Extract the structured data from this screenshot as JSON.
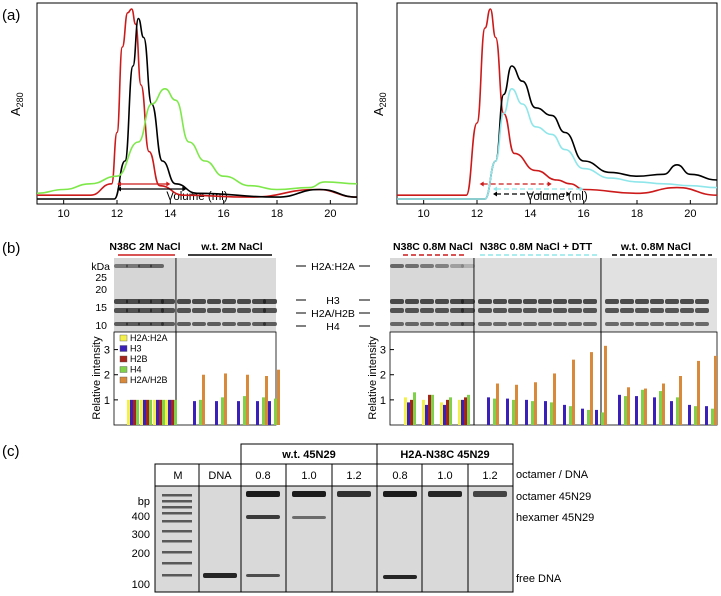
{
  "panel_labels": {
    "a": "(a)",
    "b": "(b)",
    "c": "(c)"
  },
  "colors": {
    "red": "#cc1a1a",
    "black": "#000000",
    "green": "#7ee84a",
    "cyan": "#8fe6ea",
    "bar_yellow": "#f3f04a",
    "bar_blue": "#3a1fb8",
    "bar_darkred": "#a5241c",
    "bar_green": "#7fd14a",
    "bar_orange": "#d8893a"
  },
  "chart_data": [
    {
      "type": "line",
      "panel": "(a) left",
      "ylabel": "A",
      "ylabel_sub": "280",
      "xlabel": "Volume (ml)",
      "xlim": [
        9,
        21
      ],
      "xticks": [
        10,
        12,
        14,
        16,
        18,
        20
      ],
      "series": [
        {
          "color": "red",
          "points": [
            [
              9,
              0.02
            ],
            [
              11,
              0.02
            ],
            [
              11.8,
              0.08
            ],
            [
              12.0,
              0.35
            ],
            [
              12.2,
              0.8
            ],
            [
              12.4,
              0.98
            ],
            [
              12.55,
              1.0
            ],
            [
              12.7,
              0.92
            ],
            [
              12.9,
              0.6
            ],
            [
              13.2,
              0.25
            ],
            [
              13.6,
              0.07
            ],
            [
              14.5,
              0.02
            ],
            [
              17,
              0.01
            ],
            [
              19.5,
              0.05
            ],
            [
              21,
              0.01
            ]
          ]
        },
        {
          "color": "black",
          "points": [
            [
              9,
              0.0
            ],
            [
              11.9,
              0.0
            ],
            [
              12.3,
              0.2
            ],
            [
              12.6,
              0.7
            ],
            [
              12.8,
              0.95
            ],
            [
              13.0,
              0.85
            ],
            [
              13.3,
              0.5
            ],
            [
              13.7,
              0.2
            ],
            [
              14.2,
              0.08
            ],
            [
              15,
              0.03
            ],
            [
              18,
              0.01
            ],
            [
              19.6,
              0.05
            ],
            [
              21,
              0.01
            ]
          ]
        },
        {
          "color": "green",
          "points": [
            [
              9,
              0.03
            ],
            [
              10,
              0.05
            ],
            [
              11,
              0.08
            ],
            [
              12,
              0.12
            ],
            [
              12.8,
              0.3
            ],
            [
              13.3,
              0.5
            ],
            [
              13.8,
              0.58
            ],
            [
              14.2,
              0.52
            ],
            [
              14.7,
              0.3
            ],
            [
              15.3,
              0.2
            ],
            [
              16,
              0.12
            ],
            [
              17,
              0.07
            ],
            [
              18,
              0.05
            ],
            [
              19.2,
              0.06
            ],
            [
              19.8,
              0.09
            ],
            [
              21,
              0.08
            ]
          ]
        }
      ],
      "ranges": [
        {
          "color": "red",
          "x": [
            12.0,
            14.0
          ]
        },
        {
          "color": "black",
          "x": [
            12.0,
            14.6
          ]
        }
      ]
    },
    {
      "type": "line",
      "panel": "(a) right",
      "ylabel": "A",
      "ylabel_sub": "280",
      "xlabel": "Volume (ml)",
      "xlim": [
        9,
        21
      ],
      "xticks": [
        10,
        12,
        14,
        16,
        18,
        20
      ],
      "series": [
        {
          "color": "red",
          "points": [
            [
              9,
              0.02
            ],
            [
              11.6,
              0.02
            ],
            [
              12.0,
              0.4
            ],
            [
              12.3,
              0.9
            ],
            [
              12.5,
              1.0
            ],
            [
              12.7,
              0.85
            ],
            [
              13.0,
              0.45
            ],
            [
              13.4,
              0.24
            ],
            [
              14.2,
              0.15
            ],
            [
              15,
              0.1
            ],
            [
              15.5,
              0.08
            ],
            [
              16,
              0.05
            ],
            [
              18,
              0.03
            ],
            [
              19.5,
              0.06
            ],
            [
              21,
              0.02
            ]
          ]
        },
        {
          "color": "black",
          "points": [
            [
              9,
              0.0
            ],
            [
              12.3,
              0.0
            ],
            [
              12.7,
              0.2
            ],
            [
              13.0,
              0.55
            ],
            [
              13.3,
              0.7
            ],
            [
              13.7,
              0.62
            ],
            [
              14.2,
              0.48
            ],
            [
              14.8,
              0.44
            ],
            [
              15.3,
              0.35
            ],
            [
              16,
              0.2
            ],
            [
              17,
              0.14
            ],
            [
              18,
              0.12
            ],
            [
              19,
              0.13
            ],
            [
              19.5,
              0.18
            ],
            [
              20,
              0.13
            ],
            [
              21,
              0.1
            ]
          ]
        },
        {
          "color": "cyan",
          "points": [
            [
              9,
              0.0
            ],
            [
              12.3,
              0.0
            ],
            [
              12.7,
              0.2
            ],
            [
              13.0,
              0.45
            ],
            [
              13.3,
              0.58
            ],
            [
              13.7,
              0.5
            ],
            [
              14.2,
              0.38
            ],
            [
              14.8,
              0.34
            ],
            [
              15.3,
              0.26
            ],
            [
              16,
              0.16
            ],
            [
              17,
              0.11
            ],
            [
              18,
              0.09
            ],
            [
              19,
              0.08
            ],
            [
              20,
              0.07
            ],
            [
              21,
              0.06
            ]
          ]
        }
      ],
      "ranges": [
        {
          "color": "red",
          "x": [
            12.1,
            14.8
          ],
          "dashed": true
        },
        {
          "color": "cyan",
          "x": [
            12.6,
            16.0
          ],
          "dashed": true
        },
        {
          "color": "black",
          "x": [
            12.6,
            15.5
          ],
          "dashed": true
        }
      ]
    },
    {
      "type": "bar",
      "panel": "(b) N38C 2M NaCl / w.t. 2M NaCl",
      "ylabel": "Relative intensity",
      "ylim": [
        0,
        3.7
      ],
      "yticks": [
        1,
        2,
        3
      ],
      "legend": [
        "H2A:H2A",
        "H3",
        "H2B",
        "H4",
        "H2A/H2B"
      ],
      "groups": [
        {
          "values": [
            1.0,
            1.0,
            1.0,
            1.0,
            0
          ]
        },
        {
          "values": [
            1.0,
            1.0,
            1.0,
            1.0,
            0
          ]
        },
        {
          "values": [
            1.0,
            1.0,
            1.0,
            1.0,
            0
          ]
        },
        {
          "values": [
            1.0,
            1.0,
            1.0,
            1.0,
            0
          ]
        },
        {
          "values": [
            0,
            0.95,
            0,
            1.0,
            2.0
          ]
        },
        {
          "values": [
            0,
            0.95,
            0,
            1.1,
            2.05
          ]
        },
        {
          "values": [
            0,
            0.95,
            0,
            1.15,
            2.0
          ]
        },
        {
          "values": [
            0,
            0.95,
            0,
            1.1,
            1.95
          ]
        },
        {
          "values": [
            0,
            0.95,
            0,
            1.05,
            2.2
          ]
        }
      ]
    },
    {
      "type": "bar",
      "panel": "(b) N38C 0.8M NaCl / + DTT / w.t. 0.8M NaCl",
      "ylabel": "Relative intensity",
      "ylim": [
        0,
        3.7
      ],
      "yticks": [
        1,
        2,
        3
      ],
      "groups": [
        {
          "values": [
            1.1,
            0.9,
            1.0,
            1.3,
            0
          ]
        },
        {
          "values": [
            1.0,
            0.8,
            1.2,
            1.2,
            0
          ]
        },
        {
          "values": [
            0.9,
            0.8,
            1.0,
            1.1,
            0
          ]
        },
        {
          "values": [
            1.0,
            1.0,
            1.1,
            1.2,
            0
          ]
        },
        {
          "values": [
            0,
            1.1,
            0,
            1.05,
            1.65
          ]
        },
        {
          "values": [
            0,
            1.05,
            0,
            1.0,
            1.6
          ]
        },
        {
          "values": [
            0,
            1.0,
            0,
            0.95,
            1.7
          ]
        },
        {
          "values": [
            0,
            0.95,
            0,
            0.9,
            2.05
          ]
        },
        {
          "values": [
            0,
            0.8,
            0,
            0.75,
            2.6
          ]
        },
        {
          "values": [
            0,
            0.65,
            0,
            0.6,
            2.9
          ]
        },
        {
          "values": [
            0,
            0.6,
            0,
            0.5,
            3.15
          ]
        },
        {
          "values": [
            0,
            1.2,
            0,
            1.15,
            1.5
          ]
        },
        {
          "values": [
            0,
            1.15,
            0,
            1.4,
            1.45
          ]
        },
        {
          "values": [
            0,
            1.1,
            0,
            1.35,
            1.65
          ]
        },
        {
          "values": [
            0,
            0.95,
            0,
            1.1,
            1.95
          ]
        },
        {
          "values": [
            0,
            0.8,
            0,
            0.75,
            2.55
          ]
        },
        {
          "values": [
            0,
            0.75,
            0,
            0.65,
            2.75
          ]
        }
      ]
    }
  ],
  "panel_b": {
    "left_titles": [
      "N38C 2M NaCl",
      "w.t. 2M NaCl"
    ],
    "right_titles": [
      "N38C 0.8M NaCl",
      "N38C 0.8M NaCl + DTT",
      "w.t. 0.8M NaCl"
    ],
    "kda_label": "kDa",
    "kda_ticks": [
      "25",
      "20",
      "15",
      "10"
    ],
    "band_labels": [
      "H2A:H2A",
      "H3",
      "H2A/H2B",
      "H4"
    ],
    "legend": [
      "H2A:H2A",
      "H3",
      "H2B",
      "H4",
      "H2A/H2B"
    ],
    "ylabel": "Relative intensity",
    "yticks": [
      "1",
      "2",
      "3"
    ]
  },
  "panel_c": {
    "group_headers": [
      "w.t. 45N29",
      "H2A-N38C 45N29"
    ],
    "lane_labels": [
      "M",
      "DNA",
      "0.8",
      "1.0",
      "1.2",
      "0.8",
      "1.0",
      "1.2"
    ],
    "ratio_label": "octamer / DNA",
    "bp_label": "bp",
    "bp_ticks": [
      "400",
      "300",
      "200",
      "100"
    ],
    "band_labels": [
      "octamer 45N29",
      "hexamer 45N29",
      "free DNA"
    ]
  }
}
